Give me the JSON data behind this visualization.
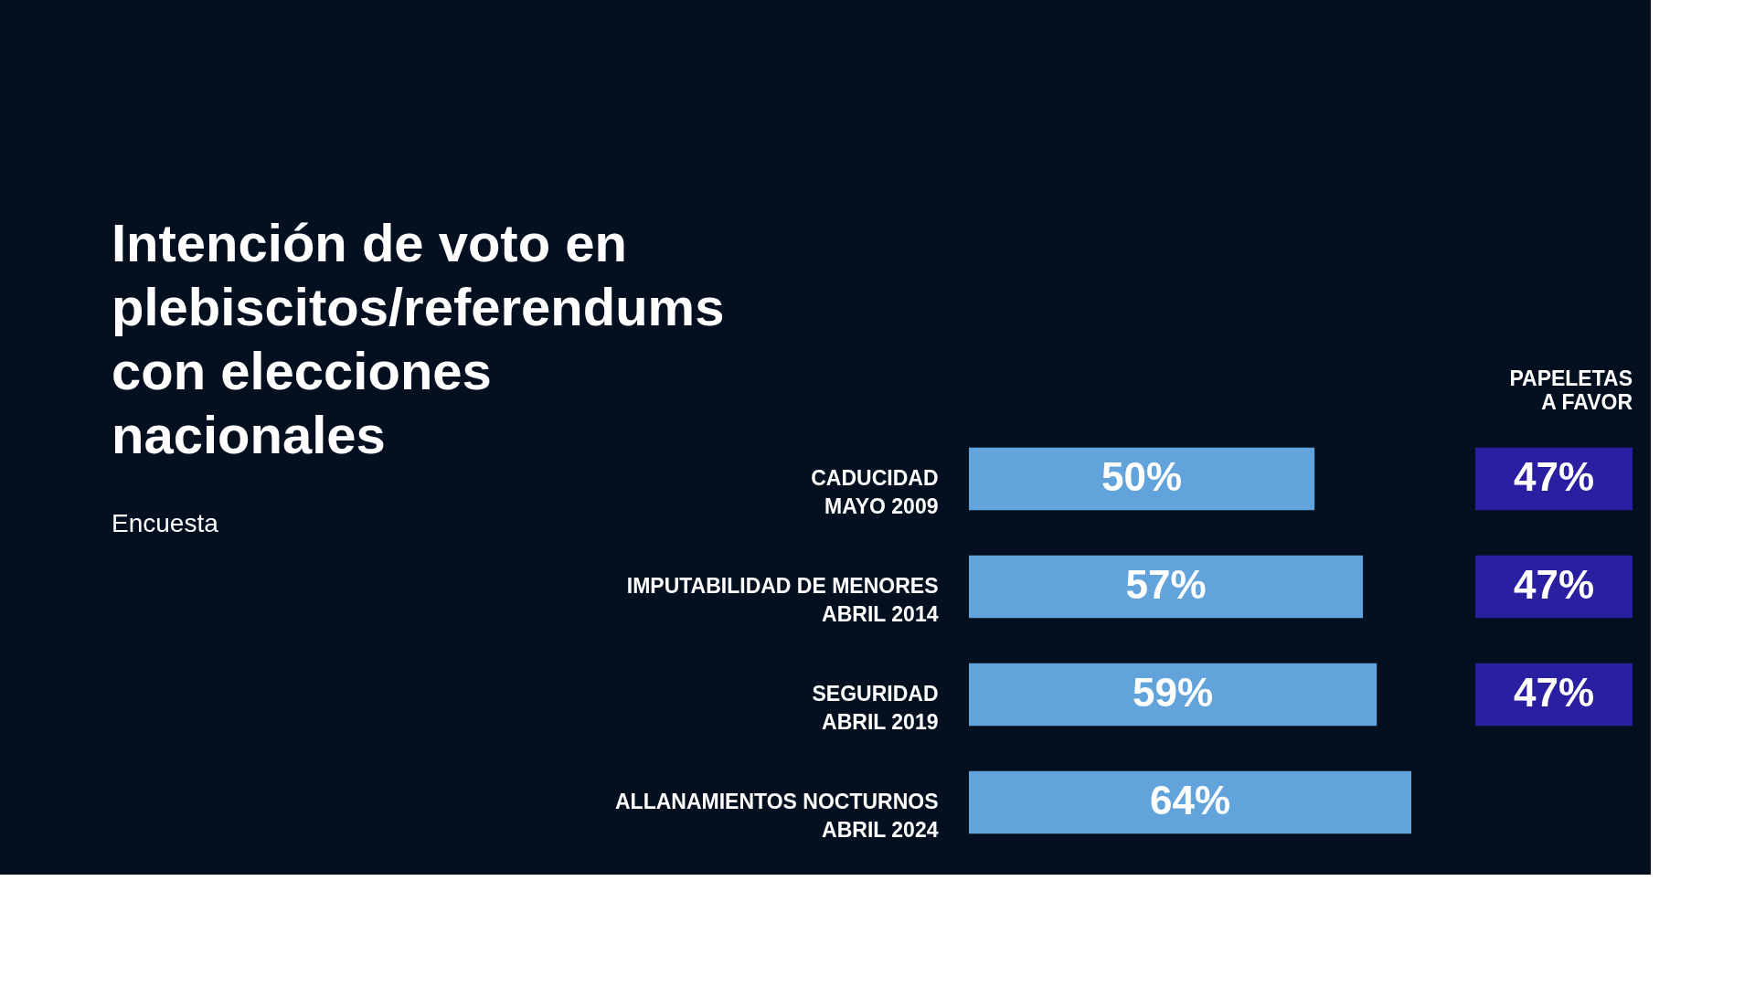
{
  "chart_data": [
    {
      "type": "bar",
      "orientation": "horizontal",
      "title": "Intención de voto en plebiscitos/referendums con elecciones nacionales",
      "annotations": [
        "Encuesta"
      ],
      "categories": [
        "CADUCIDAD\nMAYO 2009",
        "IMPUTABILIDAD DE MENORES\nABRIL 2014",
        "SEGURIDAD\nABRIL 2019",
        "ALLANAMIENTOS NOCTURNOS\nABRIL 2024"
      ],
      "values": [
        50,
        57,
        59,
        64
      ],
      "color": "#62a3db",
      "data_labels": true,
      "value_labels": [
        "50%",
        "57%",
        "59%",
        "64%"
      ]
    },
    {
      "type": "other",
      "title": "PAPELETAS\nA FAVOR",
      "values": [
        47,
        47,
        47,
        null
      ],
      "color": "#2a1fa0",
      "data_labels": true,
      "value_labels": [
        "47%",
        "47%",
        "47%",
        null
      ]
    }
  ]
}
